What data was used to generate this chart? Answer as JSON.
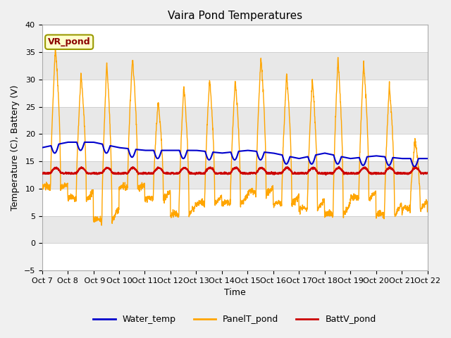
{
  "title": "Vaira Pond Temperatures",
  "xlabel": "Time",
  "ylabel": "Temperature (C), Battery (V)",
  "ylim": [
    -5,
    40
  ],
  "yticks": [
    -5,
    0,
    5,
    10,
    15,
    20,
    25,
    30,
    35,
    40
  ],
  "xtick_labels": [
    "Oct 7",
    "Oct 8",
    " Oct 9",
    "Oct 10",
    "Oct 11",
    "Oct 12",
    "Oct 13",
    "Oct 14",
    "Oct 15",
    "Oct 16",
    "Oct 17",
    "Oct 18",
    "Oct 19",
    "Oct 20",
    "Oct 21",
    "Oct 22"
  ],
  "legend_label": "VR_pond",
  "series_labels": [
    "Water_temp",
    "PanelT_pond",
    "BattV_pond"
  ],
  "series_colors": [
    "#0000cc",
    "#ffa500",
    "#cc0000"
  ],
  "fig_facecolor": "#f0f0f0",
  "plot_facecolor": "#e8e8e8",
  "title_fontsize": 11,
  "axis_fontsize": 9,
  "tick_fontsize": 8,
  "legend_fontsize": 9,
  "panel_peaks": [
    36,
    31,
    33,
    34,
    26,
    29,
    30,
    30,
    34,
    31,
    30,
    34,
    33,
    29,
    19
  ],
  "panel_mins": [
    10,
    8,
    4,
    10,
    8,
    5,
    7,
    7,
    9,
    7,
    6,
    5,
    8,
    5,
    6
  ],
  "water_vals": [
    17.5,
    18.5,
    18.5,
    17.5,
    17.0,
    17.0,
    17.0,
    16.5,
    17.0,
    16.5,
    15.5,
    16.5,
    15.5,
    16.0,
    15.5,
    15.5,
    15.5
  ],
  "batt_base": 12.8,
  "batt_peak": 13.8
}
